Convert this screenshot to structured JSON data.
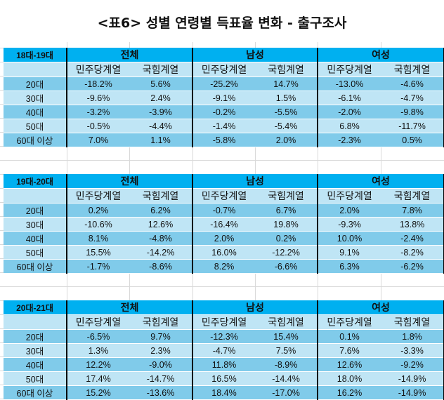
{
  "title": "<표6> 성별 연령별 득표율 변화 - 출구조사",
  "groups": [
    "전체",
    "남성",
    "여성"
  ],
  "parties": [
    "민주당계열",
    "국힘계열"
  ],
  "colors": {
    "header": "#00b0f0",
    "light": "#bfe5f5",
    "dark": "#80cbea"
  },
  "tables": [
    {
      "label": "18대-19대",
      "rows": [
        {
          "age": "20대",
          "values": [
            "-18.2%",
            "5.6%",
            "-25.2%",
            "14.7%",
            "-13.0%",
            "-4.6%"
          ]
        },
        {
          "age": "30대",
          "values": [
            "-9.6%",
            "2.4%",
            "-9.1%",
            "1.5%",
            "-6.1%",
            "-4.7%"
          ]
        },
        {
          "age": "40대",
          "values": [
            "-3.2%",
            "-3.9%",
            "-0.2%",
            "-5.5%",
            "-2.0%",
            "-9.8%"
          ]
        },
        {
          "age": "50대",
          "values": [
            "-0.5%",
            "-4.4%",
            "-1.4%",
            "-5.4%",
            "6.8%",
            "-11.7%"
          ]
        },
        {
          "age": "60대 이상",
          "values": [
            "7.0%",
            "1.1%",
            "-5.8%",
            "2.0%",
            "-2.3%",
            "0.5%"
          ]
        }
      ]
    },
    {
      "label": "19대-20대",
      "rows": [
        {
          "age": "20대",
          "values": [
            "0.2%",
            "6.2%",
            "-0.7%",
            "6.7%",
            "2.0%",
            "7.8%"
          ]
        },
        {
          "age": "30대",
          "values": [
            "-10.6%",
            "12.6%",
            "-16.4%",
            "19.8%",
            "-9.3%",
            "13.8%"
          ]
        },
        {
          "age": "40대",
          "values": [
            "8.1%",
            "-4.8%",
            "2.0%",
            "0.2%",
            "10.0%",
            "-2.4%"
          ]
        },
        {
          "age": "50대",
          "values": [
            "15.5%",
            "-14.2%",
            "16.0%",
            "-12.2%",
            "9.1%",
            "-8.2%"
          ]
        },
        {
          "age": "60대 이상",
          "values": [
            "-1.7%",
            "-8.6%",
            "8.2%",
            "-6.6%",
            "6.3%",
            "-6.2%"
          ]
        }
      ]
    },
    {
      "label": "20대-21대",
      "rows": [
        {
          "age": "20대",
          "values": [
            "-6.5%",
            "9.7%",
            "-12.3%",
            "15.4%",
            "0.1%",
            "1.8%"
          ]
        },
        {
          "age": "30대",
          "values": [
            "1.3%",
            "2.3%",
            "-4.7%",
            "7.5%",
            "7.6%",
            "-3.3%"
          ]
        },
        {
          "age": "40대",
          "values": [
            "12.2%",
            "-9.0%",
            "11.8%",
            "-8.9%",
            "12.6%",
            "-9.2%"
          ]
        },
        {
          "age": "50대",
          "values": [
            "17.4%",
            "-14.7%",
            "16.5%",
            "-14.4%",
            "18.0%",
            "-14.9%"
          ]
        },
        {
          "age": "60대 이상",
          "values": [
            "15.2%",
            "-13.6%",
            "18.4%",
            "-17.0%",
            "16.2%",
            "-14.9%"
          ]
        }
      ]
    }
  ]
}
